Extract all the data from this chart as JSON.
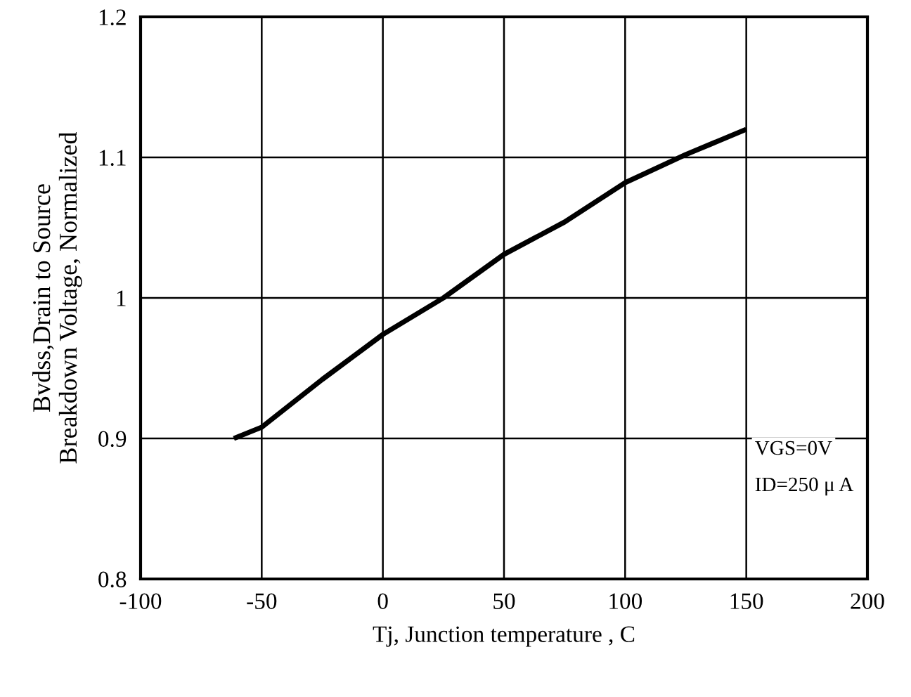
{
  "chart_data": {
    "type": "line",
    "xlabel": "Tj, Junction temperature , C",
    "ylabel": "Bvdss,Drain to Source\nBreakdown Voltage, Normalized",
    "x": [
      -61.5,
      -50,
      -25,
      0,
      25,
      50,
      75,
      100,
      125,
      150
    ],
    "series": [
      {
        "color": "#000000",
        "values": [
          0.9,
          0.908,
          0.942,
          0.974,
          1.0,
          1.031,
          1.054,
          1.082,
          1.102,
          1.12
        ]
      }
    ],
    "xlim": [
      -100,
      200
    ],
    "xticks": [
      -100,
      -50,
      0,
      50,
      100,
      150,
      200
    ],
    "ylim": [
      0.8,
      1.2
    ],
    "yticks": [
      0.8,
      0.9,
      1,
      1.1,
      1.2
    ],
    "grid": true,
    "marker": "none",
    "line_style": "solid",
    "annotations": [
      "VGS=0V",
      "ID=250 μ A"
    ]
  }
}
